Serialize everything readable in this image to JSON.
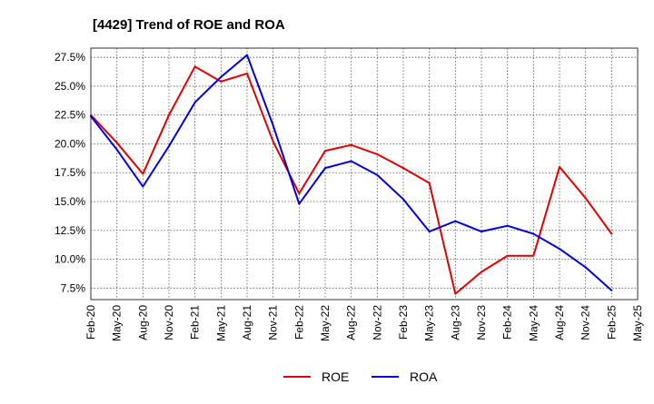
{
  "chart_data": {
    "type": "line",
    "title": "[4429]  Trend of ROE and ROA",
    "xlabel": "",
    "ylabel": "",
    "categories": [
      "Feb-20",
      "May-20",
      "Aug-20",
      "Nov-20",
      "Feb-21",
      "May-21",
      "Aug-21",
      "Nov-21",
      "Feb-22",
      "May-22",
      "Aug-22",
      "Nov-22",
      "Feb-23",
      "May-23",
      "Aug-23",
      "Nov-23",
      "Feb-24",
      "May-24",
      "Aug-24",
      "Nov-24",
      "Feb-25",
      "May-25"
    ],
    "ylim": [
      6.5,
      28.3
    ],
    "yticks": [
      7.5,
      10.0,
      12.5,
      15.0,
      17.5,
      20.0,
      22.5,
      25.0,
      27.5
    ],
    "ytick_labels": [
      "7.5%",
      "10.0%",
      "12.5%",
      "15.0%",
      "17.5%",
      "20.0%",
      "22.5%",
      "25.0%",
      "27.5%"
    ],
    "grid": true,
    "legend_position": "bottom-center",
    "series": [
      {
        "name": "ROE",
        "color": "#e00000",
        "values": [
          22.5,
          20.1,
          17.4,
          22.5,
          26.7,
          25.4,
          26.1,
          20.2,
          15.7,
          19.4,
          19.9,
          19.1,
          17.9,
          16.6,
          7.0,
          8.9,
          10.3,
          10.3,
          18.0,
          15.3,
          12.2,
          null
        ]
      },
      {
        "name": "ROA",
        "color": "#0000dd",
        "values": [
          22.4,
          19.5,
          16.3,
          19.8,
          23.6,
          25.8,
          27.7,
          21.6,
          14.8,
          17.9,
          18.5,
          17.3,
          15.2,
          12.4,
          13.3,
          12.4,
          12.9,
          12.2,
          10.9,
          9.3,
          7.3,
          null
        ]
      }
    ]
  }
}
